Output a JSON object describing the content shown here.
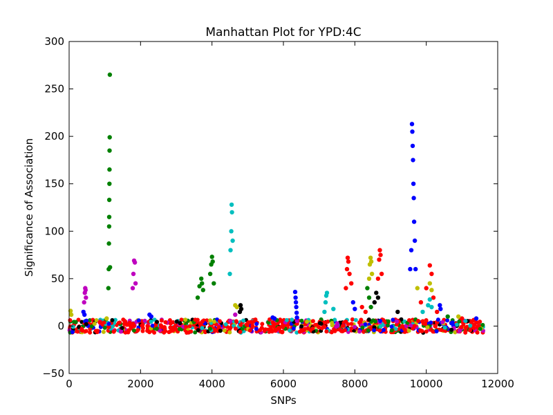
{
  "chart_data": {
    "type": "scatter",
    "title": "Manhattan Plot for YPD:4C",
    "xlabel": "SNPs",
    "ylabel": "Significance of Association",
    "xlim": [
      0,
      12000
    ],
    "ylim": [
      -50,
      300
    ],
    "xticks": [
      0,
      2000,
      4000,
      6000,
      8000,
      10000,
      12000
    ],
    "yticks": [
      -50,
      0,
      50,
      100,
      150,
      200,
      250,
      300
    ],
    "xtick_labels": [
      "0",
      "2000",
      "4000",
      "6000",
      "8000",
      "10000",
      "12000"
    ],
    "ytick_labels": [
      "−50",
      "0",
      "50",
      "100",
      "150",
      "200",
      "250",
      "300"
    ],
    "grid": false,
    "legend": false,
    "colors": [
      "#0000ff",
      "#008000",
      "#ff0000",
      "#00bfbf",
      "#bf00bf",
      "#bfbf00",
      "#000000"
    ],
    "series": [
      {
        "color": "#0000ff",
        "x": [
          400,
          430,
          2250,
          2300,
          5700,
          5750,
          6330,
          6340,
          6350,
          6360,
          6370,
          6380,
          7950,
          8000,
          9550,
          9580,
          9600,
          9610,
          9620,
          9630,
          9640,
          9650,
          9660,
          9680,
          9700,
          10380,
          10400,
          11400
        ],
        "y": [
          15,
          12,
          12,
          10,
          9,
          8,
          36,
          30,
          25,
          20,
          14,
          9,
          25,
          18,
          60,
          80,
          213,
          205,
          190,
          175,
          150,
          135,
          110,
          90,
          60,
          22,
          18,
          8
        ]
      },
      {
        "color": "#008000",
        "x": [
          1100,
          1110,
          1115,
          1120,
          1122,
          1125,
          1128,
          1130,
          1133,
          1136,
          1140,
          1145,
          3600,
          3650,
          3700,
          3720,
          3750,
          3950,
          3980,
          4000,
          4020,
          4050,
          8350,
          8400,
          8450,
          10600
        ],
        "y": [
          40,
          60,
          87,
          105,
          115,
          133,
          150,
          165,
          185,
          199,
          265,
          62,
          30,
          42,
          50,
          45,
          38,
          55,
          65,
          73,
          68,
          45,
          40,
          30,
          20,
          10
        ]
      },
      {
        "color": "#ff0000",
        "x": [
          7750,
          7780,
          7800,
          7820,
          7850,
          7900,
          8200,
          8300,
          8650,
          8680,
          8700,
          8720,
          8750,
          9850,
          10000,
          10100,
          10150,
          10200,
          10300,
          11000
        ],
        "y": [
          40,
          60,
          72,
          68,
          55,
          45,
          20,
          15,
          50,
          70,
          80,
          75,
          55,
          25,
          40,
          64,
          55,
          30,
          15,
          8
        ]
      },
      {
        "color": "#00bfbf",
        "x": [
          4500,
          4520,
          4540,
          4550,
          4560,
          4580,
          7150,
          7180,
          7200,
          7220,
          7400,
          9900,
          10050,
          10100,
          10150
        ],
        "y": [
          55,
          80,
          100,
          128,
          120,
          90,
          15,
          25,
          32,
          35,
          18,
          15,
          22,
          28,
          20
        ]
      },
      {
        "color": "#bf00bf",
        "x": [
          420,
          440,
          450,
          460,
          470,
          1780,
          1800,
          1820,
          1840,
          1860,
          4650
        ],
        "y": [
          25,
          35,
          40,
          38,
          30,
          40,
          55,
          69,
          67,
          45,
          12
        ]
      },
      {
        "color": "#bfbf00",
        "x": [
          40,
          60,
          1050,
          4650,
          4700,
          8400,
          8420,
          8440,
          8460,
          8480,
          9750,
          10100,
          10150,
          10900
        ],
        "y": [
          16,
          12,
          8,
          22,
          20,
          50,
          65,
          72,
          68,
          55,
          40,
          45,
          38,
          10
        ]
      },
      {
        "color": "#000000",
        "x": [
          4780,
          4800,
          4820,
          8550,
          8600,
          8650,
          9200
        ],
        "y": [
          15,
          22,
          18,
          25,
          35,
          30,
          15
        ]
      }
    ]
  }
}
